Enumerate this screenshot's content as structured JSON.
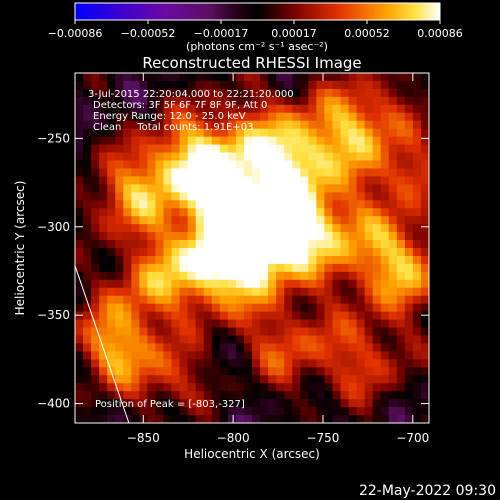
{
  "chart_data": {
    "type": "heatmap",
    "title": "Reconstructed RHESSI Image",
    "xlabel": "Heliocentric X (arcsec)",
    "ylabel": "Heliocentric Y (arcsec)",
    "xlim": [
      -888,
      -691
    ],
    "ylim": [
      -411,
      -213
    ],
    "x_ticks": [
      {
        "value": -850,
        "label": "−850"
      },
      {
        "value": -800,
        "label": "−800"
      },
      {
        "value": -750,
        "label": "−750"
      },
      {
        "value": -700,
        "label": "−700"
      }
    ],
    "y_ticks": [
      {
        "value": -250,
        "label": "−250"
      },
      {
        "value": -300,
        "label": "−300"
      },
      {
        "value": -350,
        "label": "−350"
      },
      {
        "value": -400,
        "label": "−400"
      }
    ],
    "colorbar": {
      "range": [
        -0.00086,
        0.00086
      ],
      "tick_labels": [
        "−0.00086",
        "−0.00052",
        "−0.00017",
        "0.00017",
        "0.00052",
        "0.00086"
      ],
      "unit_text": "(photons cm⁻² s⁻¹ asec⁻²)"
    },
    "annotations": [
      "3-Jul-2015 22:20:04.000 to 22:21:20.000",
      "Detectors: 3F 5F 6F 7F 8F 9F, Att 0",
      "Energy Range: 12.0 - 25.0 keV",
      "Clean     Total counts: 1.91E+03"
    ],
    "peak_label": "Position of Peak = [-803,-327]",
    "peak_position": [
      -803,
      -327
    ],
    "limb_line": [
      [
        -888,
        -322
      ],
      [
        -858,
        -411
      ]
    ]
  },
  "footer": {
    "timestamp": "22-May-2022 09:30"
  }
}
